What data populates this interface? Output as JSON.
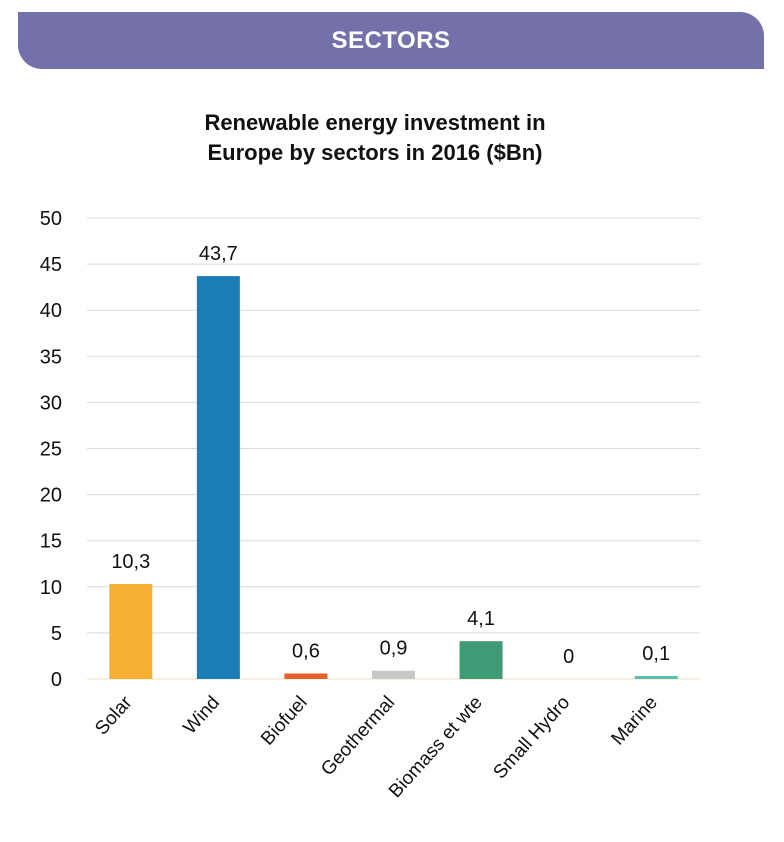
{
  "banner": {
    "title": "SECTORS",
    "color": "#7470a9"
  },
  "chart_data": {
    "type": "bar",
    "title_lines": [
      "Renewable energy investment in",
      "Europe by sectors in 2016 ($Bn)"
    ],
    "categories": [
      "Solar",
      "Wind",
      "Biofuel",
      "Geothermal",
      "Biomass et wte",
      "Small Hydro",
      "Marine"
    ],
    "values": [
      10.3,
      43.7,
      0.6,
      0.9,
      4.1,
      0,
      0.1
    ],
    "data_labels": [
      "10,3",
      "43,7",
      "0,6",
      "0,9",
      "4,1",
      "0",
      "0,1"
    ],
    "colors": [
      "#f6b134",
      "#1a7db5",
      "#e45f2b",
      "#c8c8c8",
      "#3e9b76",
      "#8cc63f",
      "#5bbfb0"
    ],
    "ylim": [
      0,
      50
    ],
    "yticks": [
      0,
      5,
      10,
      15,
      20,
      25,
      30,
      35,
      40,
      45,
      50
    ],
    "grid": true,
    "xlabel": "",
    "ylabel": ""
  }
}
